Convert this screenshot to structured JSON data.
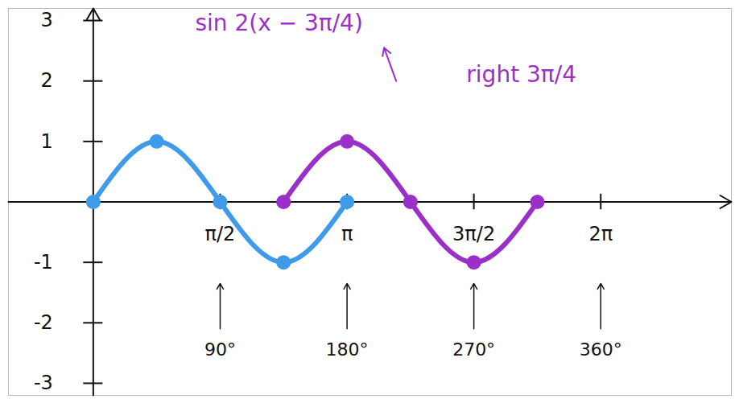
{
  "chart_data": {
    "type": "line",
    "xlim": [
      -1.05,
      7.9
    ],
    "ylim": [
      -3.2,
      3.2
    ],
    "xticks": [
      {
        "value": 1.571,
        "label": "π/2"
      },
      {
        "value": 3.142,
        "label": "π"
      },
      {
        "value": 4.712,
        "label": "3π/2"
      },
      {
        "value": 6.283,
        "label": "2π"
      }
    ],
    "yticks": [
      -3,
      -2,
      -1,
      1,
      2,
      3
    ],
    "grid": false,
    "series": [
      {
        "color": "#3d9be9",
        "marker": "circle",
        "line_style": "solid",
        "x": [
          0,
          0.785,
          1.571,
          2.356,
          3.142
        ],
        "values": [
          0,
          1,
          0,
          -1,
          0
        ]
      },
      {
        "name": "sin 2(x − 3π/4)",
        "color": "#9b30c8",
        "marker": "circle",
        "line_style": "solid",
        "x": [
          2.356,
          3.142,
          3.927,
          4.712,
          5.498
        ],
        "values": [
          0,
          1,
          0,
          -1,
          0
        ]
      }
    ],
    "annotations": [
      {
        "text": "sin 2(x − 3π/4)",
        "x": 2.3,
        "y": 2.95,
        "color": "#9b30c8"
      },
      {
        "text": "right 3π/4",
        "x": 5.3,
        "y": 2.1,
        "color": "#9b30c8"
      }
    ],
    "degree_labels": [
      {
        "x": 1.571,
        "label": "90°"
      },
      {
        "x": 3.142,
        "label": "180°"
      },
      {
        "x": 4.712,
        "label": "270°"
      },
      {
        "x": 6.283,
        "label": "360°"
      }
    ]
  }
}
